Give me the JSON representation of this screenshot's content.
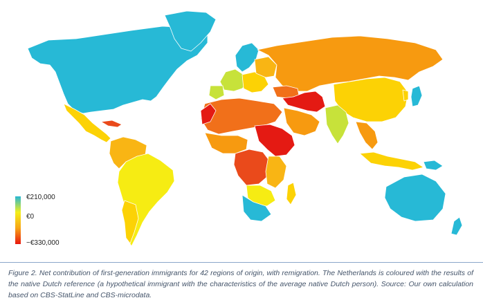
{
  "legend": {
    "top_label": "€210,000",
    "mid_label": "€0",
    "bottom_label": "−€330,000",
    "gradient": [
      "#26b7d4",
      "#f4ef1a",
      "#f7a416",
      "#e8170f"
    ]
  },
  "caption": {
    "text": "Figure 2. Net contribution of first-generation immigrants for 42 regions of origin, with remigration. The Netherlands is coloured with the results of the native Dutch reference (a hypothetical immigrant with the characteristics of the average native Dutch person). Source: Our own calculation based on CBS-StatLine and CBS-microdata."
  },
  "colors": {
    "cyan": "#27b9d6",
    "green_yellow": "#c7e23a",
    "yellow": "#f6ec13",
    "gold": "#fcd205",
    "light_orange": "#f9b514",
    "orange": "#f79a10",
    "dark_orange": "#f1701a",
    "red_orange": "#ea4a1b",
    "red": "#e41a13"
  }
}
